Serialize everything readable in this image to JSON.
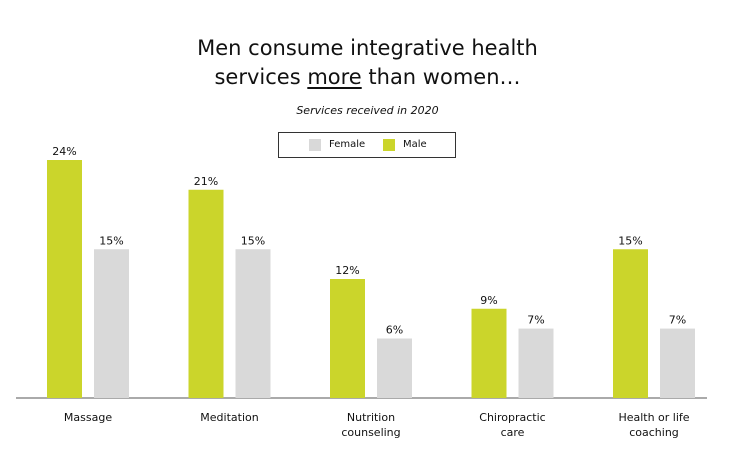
{
  "header": {
    "title_line1": "Men consume integrative health",
    "title_pre": "services ",
    "title_emph": "more",
    "title_post": " than women…",
    "subtitle": "Services received in 2020"
  },
  "colors": {
    "male": "#cbd52b",
    "female": "#d9d9d9",
    "axis": "#555555"
  },
  "chart_data": {
    "type": "bar",
    "title": "Men consume integrative health services more than women…",
    "subtitle": "Services received in 2020",
    "categories": [
      "Massage",
      "Meditation",
      "Nutrition\ncounseling",
      "Chiropractic\ncare",
      "Health or life\ncoaching"
    ],
    "series": [
      {
        "name": "Male",
        "values": [
          24,
          21,
          12,
          9,
          15
        ],
        "labels": [
          "24%",
          "21%",
          "12%",
          "9%",
          "15%"
        ],
        "color": "#cbd52b"
      },
      {
        "name": "Female",
        "values": [
          15,
          15,
          6,
          7,
          7
        ],
        "labels": [
          "15%",
          "15%",
          "6%",
          "7%",
          "7%"
        ],
        "color": "#d9d9d9"
      }
    ],
    "legend": {
      "position": "top-center",
      "entries": [
        "Female",
        "Male"
      ]
    },
    "ylim": [
      0,
      24
    ],
    "grid": false,
    "xlabel": "",
    "ylabel": ""
  }
}
